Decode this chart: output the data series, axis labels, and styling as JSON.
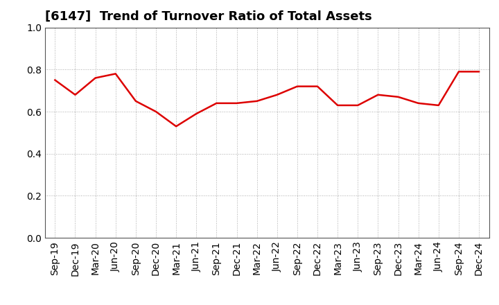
{
  "title": "[6147]  Trend of Turnover Ratio of Total Assets",
  "x_labels": [
    "Sep-19",
    "Dec-19",
    "Mar-20",
    "Jun-20",
    "Sep-20",
    "Dec-20",
    "Mar-21",
    "Jun-21",
    "Sep-21",
    "Dec-21",
    "Mar-22",
    "Jun-22",
    "Sep-22",
    "Dec-22",
    "Mar-23",
    "Jun-23",
    "Sep-23",
    "Dec-23",
    "Mar-24",
    "Jun-24",
    "Sep-24",
    "Dec-24"
  ],
  "y_values": [
    0.75,
    0.68,
    0.76,
    0.78,
    0.65,
    0.6,
    0.53,
    0.59,
    0.64,
    0.64,
    0.65,
    0.68,
    0.72,
    0.72,
    0.63,
    0.63,
    0.68,
    0.67,
    0.64,
    0.63,
    0.79,
    0.79
  ],
  "line_color": "#dd0000",
  "line_width": 1.8,
  "ylim": [
    0.0,
    1.0
  ],
  "yticks": [
    0.0,
    0.2,
    0.4,
    0.6,
    0.8,
    1.0
  ],
  "background_color": "#ffffff",
  "grid_color": "#aaaaaa",
  "title_fontsize": 13,
  "tick_fontsize": 10
}
